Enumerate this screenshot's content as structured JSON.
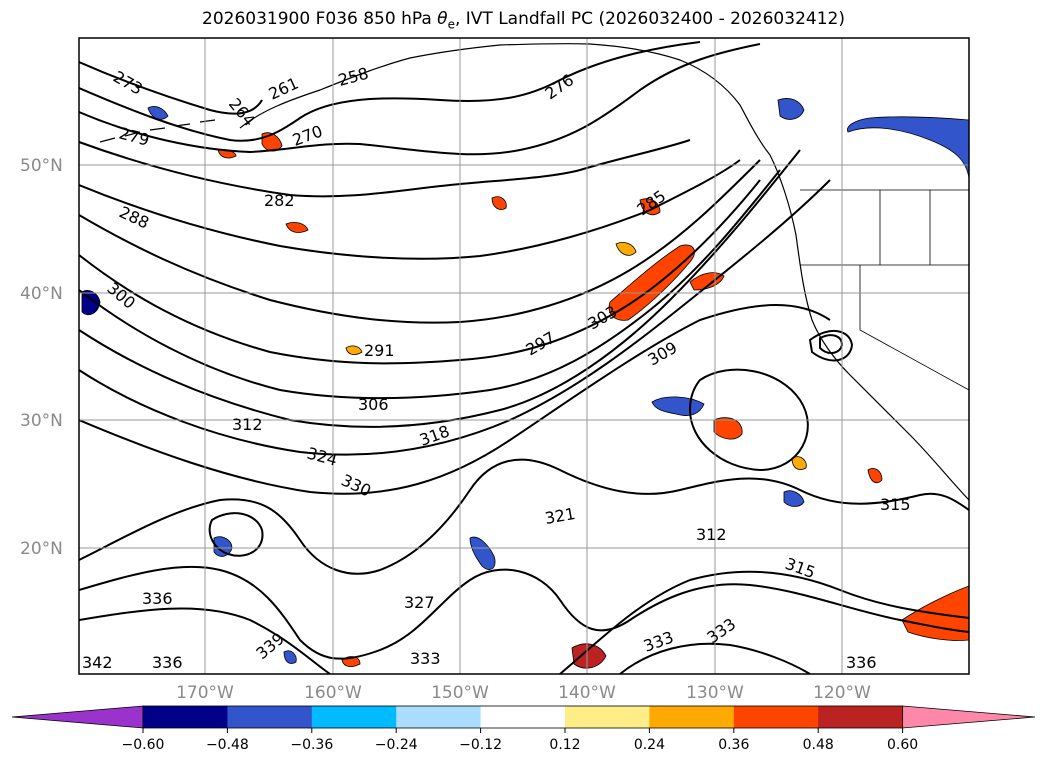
{
  "title_prefix": "2026031900 F036 850 hPa ",
  "title_symbol": "θ",
  "title_subscript": "e",
  "title_suffix": ", IVT Landfall PC (2026032400 - 2026032412)",
  "latitude_labels": [
    "50°N",
    "40°N",
    "30°N",
    "20°N"
  ],
  "longitude_labels": [
    "170°W",
    "160°W",
    "150°W",
    "140°W",
    "130°W",
    "120°W"
  ],
  "colorbar": {
    "colors": [
      "#9933cc",
      "#000088",
      "#3355cc",
      "#00bbff",
      "#aaddff",
      "#ffffff",
      "#ffee88",
      "#ffaa00",
      "#ff4400",
      "#bb2222",
      "#ff88aa"
    ],
    "tick_labels": [
      "−0.60",
      "−0.48",
      "−0.36",
      "−0.24",
      "−0.12",
      "0.12",
      "0.24",
      "0.36",
      "0.48",
      "0.60"
    ]
  },
  "contour_labels": [
    "273",
    "279",
    "276",
    "261",
    "258",
    "264",
    "270",
    "282",
    "288",
    "285",
    "300",
    "291",
    "297",
    "303",
    "306",
    "309",
    "312",
    "318",
    "324",
    "330",
    "321",
    "327",
    "336",
    "315",
    "333",
    "339",
    "342"
  ],
  "colors": {
    "contour": "#000000",
    "gridline": "#999999",
    "negative_shading": "#3355cc",
    "positive_shading": "#ff4400"
  }
}
